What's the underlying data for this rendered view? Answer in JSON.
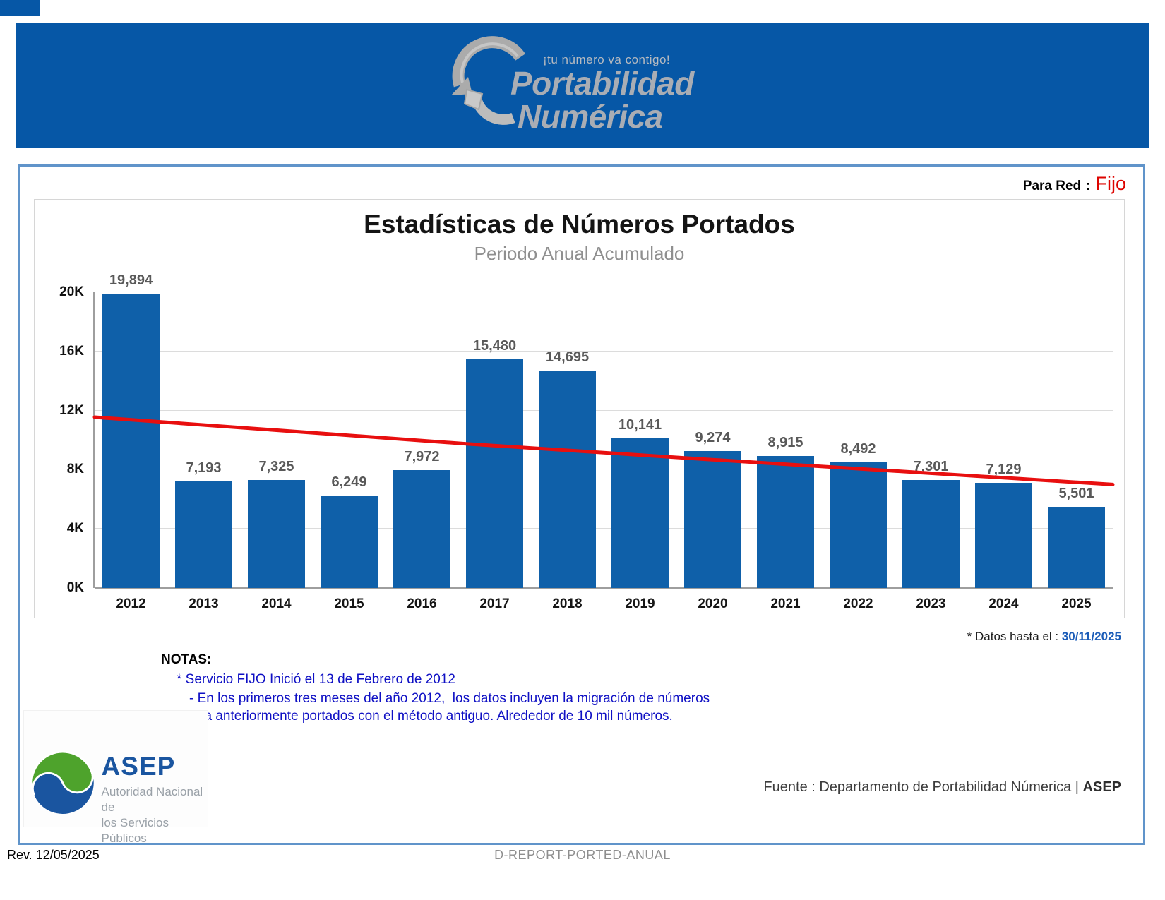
{
  "banner": {
    "tagline": "¡tu número va contigo!",
    "brand_line1": "Portabilidad",
    "brand_line2": "Numérica"
  },
  "para_red": {
    "label": "Para Red",
    "separator": ":",
    "value": "Fijo"
  },
  "chart_data": {
    "type": "bar",
    "title": "Estadísticas de Números Portados",
    "subtitle": "Periodo Anual Acumulado",
    "categories": [
      "2012",
      "2013",
      "2014",
      "2015",
      "2016",
      "2017",
      "2018",
      "2019",
      "2020",
      "2021",
      "2022",
      "2023",
      "2024",
      "2025"
    ],
    "values": [
      19894,
      7193,
      7325,
      6249,
      7972,
      15480,
      14695,
      10141,
      9274,
      8915,
      8492,
      7301,
      7129,
      5501
    ],
    "y_ticks": [
      "20K",
      "16K",
      "12K",
      "8K",
      "4K",
      "0K"
    ],
    "ylim": [
      0,
      20000
    ],
    "grid": true,
    "legend": "none",
    "bar_color": "#0f60a9",
    "trend_color": "#e80f0f",
    "trend_points_k": [
      {
        "f": 0.0,
        "k": 11.55
      },
      {
        "f": 0.365,
        "k": 9.75
      },
      {
        "f": 0.601,
        "k": 8.7
      },
      {
        "f": 1.0,
        "k": 7.0
      }
    ]
  },
  "datos_hasta": {
    "label": "* Datos hasta el : ",
    "value": "30/11/2025"
  },
  "notas": {
    "heading": "NOTAS:",
    "lines": [
      "* Servicio FIJO Inició el 13 de Febrero de 2012",
      "- En los primeros tres meses del año 2012,  los datos incluyen la migración de números",
      "ya anteriormente portados con el método antiguo. Alrededor de 10 mil números."
    ]
  },
  "asep_logo": {
    "name": "ASEP",
    "tagline_line1": "Autoridad Nacional de",
    "tagline_line2": "los Servicios Públicos"
  },
  "fuente": {
    "prefix": "Fuente : Departamento de Portabilidad Númerica | ",
    "org": "ASEP"
  },
  "footer": {
    "rev": "Rev. 12/05/2025",
    "doc_id": "D-REPORT-PORTED-ANUAL"
  },
  "colors": {
    "banner_blue": "#0657a6",
    "panel_border_blue": "#6094ca",
    "bar_blue": "#0f60a9",
    "trend_red": "#e80f0f",
    "fijo_red": "#dd0400",
    "note_blue": "#0f10c4",
    "date_blue": "#1b5cb8",
    "asep_blue": "#1a55a0",
    "asep_green": "#4ea32c"
  }
}
